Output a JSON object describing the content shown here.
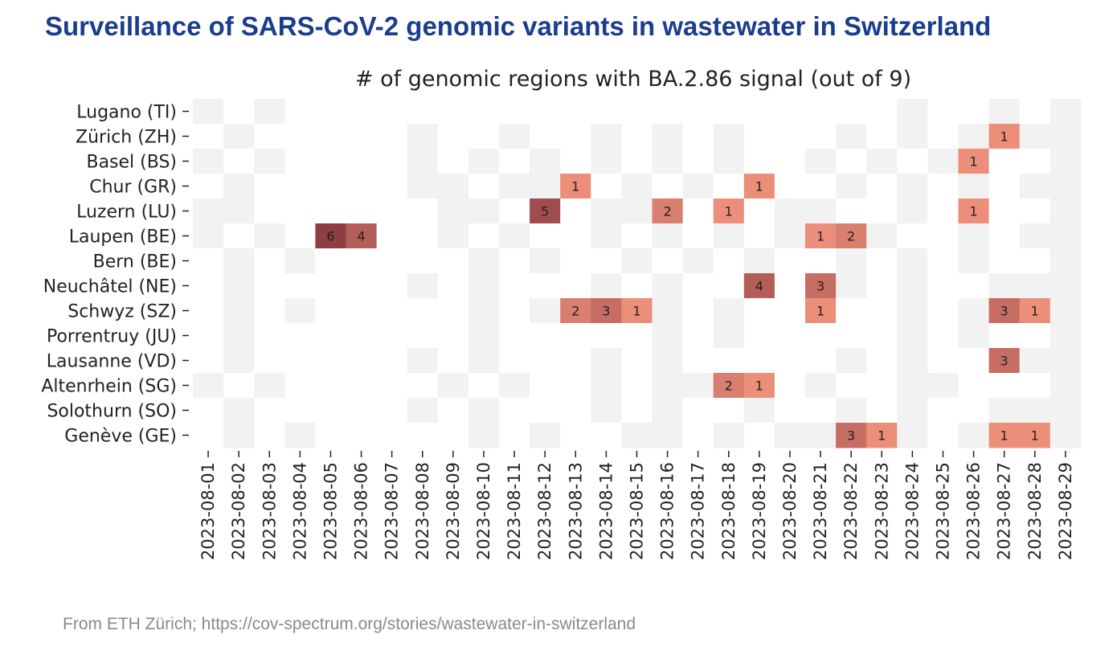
{
  "slide": {
    "title": "Surveillance of SARS-CoV-2 genomic variants in wastewater in Switzerland",
    "source": "From ETH Zürich; https://cov-spectrum.org/stories/wastewater-in-switzerland"
  },
  "chart_data": {
    "type": "heatmap",
    "title": "# of genomic regions with BA.2.86 signal (out of 9)",
    "x": [
      "2023-08-01",
      "2023-08-02",
      "2023-08-03",
      "2023-08-04",
      "2023-08-05",
      "2023-08-06",
      "2023-08-07",
      "2023-08-08",
      "2023-08-09",
      "2023-08-10",
      "2023-08-11",
      "2023-08-12",
      "2023-08-13",
      "2023-08-14",
      "2023-08-15",
      "2023-08-16",
      "2023-08-17",
      "2023-08-18",
      "2023-08-19",
      "2023-08-20",
      "2023-08-21",
      "2023-08-22",
      "2023-08-23",
      "2023-08-24",
      "2023-08-25",
      "2023-08-26",
      "2023-08-27",
      "2023-08-28",
      "2023-08-29"
    ],
    "y": [
      "Lugano (TI)",
      "Zürich (ZH)",
      "Basel (BS)",
      "Chur (GR)",
      "Luzern (LU)",
      "Laupen (BE)",
      "Bern (BE)",
      "Neuchâtel (NE)",
      "Schwyz (SZ)",
      "Porrentruy (JU)",
      "Lausanne (VD)",
      "Altenrhein (SG)",
      "Solothurn (SO)",
      "Genève (GE)"
    ],
    "vmax": 9,
    "colors": {
      "sample_zero": "#f2f2f2",
      "no_sample": "#ffffff",
      "low": "#ec8f7a",
      "high": "#8e3d43",
      "text": "#222222"
    },
    "values": [
      [
        0,
        null,
        0,
        null,
        null,
        null,
        null,
        null,
        null,
        null,
        null,
        null,
        null,
        null,
        null,
        null,
        null,
        null,
        null,
        null,
        null,
        null,
        null,
        0,
        null,
        null,
        0,
        null,
        0
      ],
      [
        null,
        0,
        null,
        null,
        null,
        null,
        null,
        0,
        null,
        null,
        0,
        null,
        null,
        0,
        null,
        0,
        null,
        0,
        null,
        null,
        null,
        0,
        null,
        0,
        null,
        0,
        1,
        0,
        0
      ],
      [
        0,
        null,
        0,
        null,
        null,
        null,
        null,
        0,
        null,
        0,
        null,
        0,
        null,
        0,
        null,
        0,
        null,
        0,
        null,
        null,
        0,
        null,
        0,
        null,
        0,
        1,
        null,
        null,
        0
      ],
      [
        null,
        0,
        null,
        null,
        null,
        null,
        null,
        0,
        0,
        null,
        0,
        0,
        1,
        null,
        0,
        null,
        0,
        null,
        1,
        null,
        null,
        0,
        null,
        0,
        null,
        0,
        null,
        0,
        0
      ],
      [
        0,
        0,
        null,
        null,
        null,
        null,
        null,
        null,
        0,
        0,
        null,
        5,
        null,
        0,
        0,
        2,
        null,
        1,
        null,
        0,
        0,
        null,
        null,
        0,
        null,
        1,
        null,
        null,
        0
      ],
      [
        0,
        null,
        0,
        null,
        6,
        4,
        null,
        null,
        0,
        null,
        0,
        null,
        null,
        0,
        null,
        0,
        null,
        0,
        null,
        0,
        1,
        2,
        0,
        null,
        null,
        0,
        null,
        0,
        0
      ],
      [
        null,
        0,
        null,
        0,
        null,
        null,
        null,
        null,
        null,
        0,
        null,
        0,
        null,
        null,
        0,
        null,
        0,
        null,
        0,
        null,
        null,
        0,
        null,
        0,
        null,
        0,
        null,
        null,
        0
      ],
      [
        null,
        0,
        null,
        null,
        null,
        null,
        null,
        0,
        null,
        0,
        null,
        null,
        null,
        0,
        null,
        0,
        null,
        null,
        4,
        null,
        3,
        0,
        null,
        0,
        null,
        null,
        0,
        0,
        0
      ],
      [
        null,
        0,
        null,
        0,
        null,
        null,
        null,
        null,
        null,
        0,
        null,
        0,
        2,
        3,
        1,
        0,
        null,
        0,
        null,
        null,
        1,
        null,
        null,
        0,
        null,
        0,
        3,
        1,
        0
      ],
      [
        null,
        0,
        null,
        null,
        null,
        null,
        null,
        null,
        null,
        0,
        null,
        null,
        null,
        null,
        null,
        0,
        null,
        0,
        null,
        null,
        null,
        null,
        null,
        0,
        null,
        0,
        null,
        null,
        0
      ],
      [
        null,
        0,
        null,
        null,
        null,
        null,
        null,
        0,
        null,
        0,
        null,
        null,
        null,
        0,
        null,
        0,
        null,
        null,
        null,
        null,
        null,
        0,
        null,
        0,
        null,
        null,
        3,
        0,
        0
      ],
      [
        0,
        null,
        0,
        null,
        null,
        null,
        null,
        null,
        0,
        null,
        0,
        null,
        null,
        0,
        null,
        0,
        0,
        2,
        1,
        null,
        0,
        null,
        null,
        0,
        0,
        null,
        null,
        null,
        0
      ],
      [
        null,
        0,
        null,
        null,
        null,
        null,
        null,
        0,
        null,
        0,
        null,
        null,
        null,
        0,
        null,
        0,
        null,
        null,
        0,
        null,
        null,
        0,
        null,
        0,
        null,
        null,
        0,
        0,
        0
      ],
      [
        null,
        0,
        null,
        0,
        null,
        null,
        null,
        null,
        null,
        0,
        null,
        0,
        null,
        null,
        0,
        0,
        null,
        0,
        null,
        0,
        0,
        3,
        1,
        0,
        null,
        0,
        1,
        1,
        0
      ]
    ]
  }
}
